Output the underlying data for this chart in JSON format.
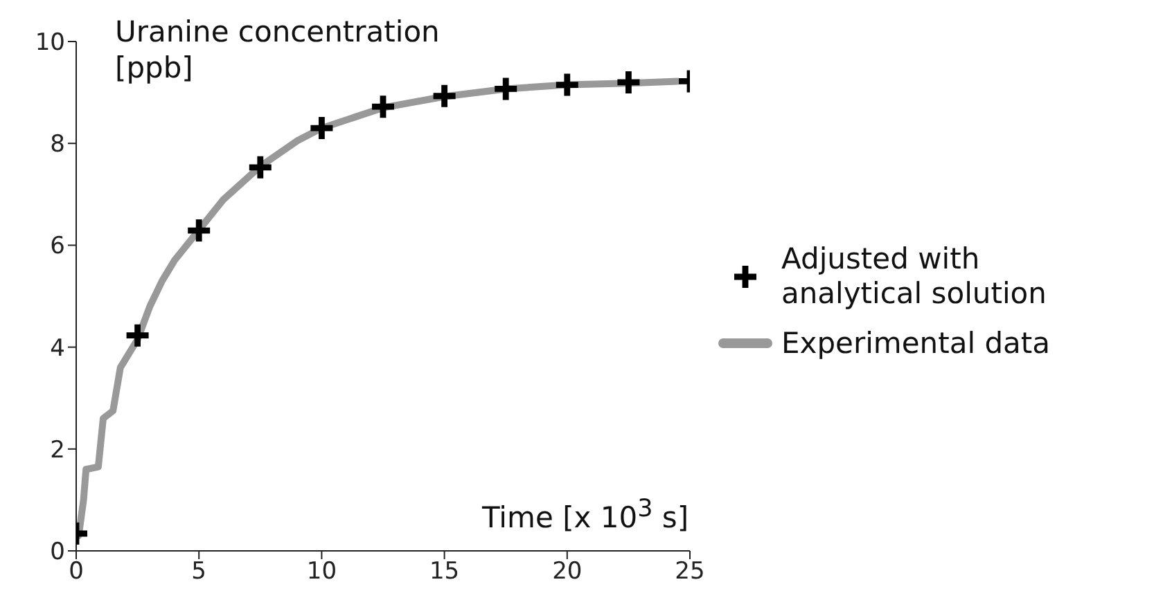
{
  "chart_data": {
    "type": "line",
    "xlabel": "Time [x 10$^{3}$ s]",
    "ylabel": "Uranine concentration [ppb]",
    "xlim": [
      0,
      25
    ],
    "xticks": [
      0,
      5,
      10,
      15,
      20,
      25
    ],
    "ylim": [
      0,
      10
    ],
    "yticks": [
      0,
      2,
      4,
      6,
      8,
      10
    ],
    "grid": false,
    "legend": "right",
    "series": [
      {
        "name": "Adjusted with analytical solution",
        "type": "scatter",
        "marker": "cross",
        "color": "#000000",
        "x": [
          0,
          2.5,
          5,
          7.5,
          10,
          12.5,
          15,
          17.5,
          20,
          22.5,
          25
        ],
        "values": [
          0.34,
          4.23,
          6.29,
          7.53,
          8.3,
          8.72,
          8.93,
          9.07,
          9.15,
          9.2,
          9.22
        ]
      },
      {
        "name": "Experimental data",
        "color": "#999999",
        "x": [
          0.1,
          0.3,
          0.4,
          0.9,
          1.1,
          1.5,
          1.8,
          2.5,
          3,
          3.5,
          4,
          5,
          6,
          7.5,
          9,
          10,
          12.5,
          15,
          17.5,
          20,
          22.5,
          24.5
        ],
        "values": [
          0.3,
          1.0,
          1.6,
          1.65,
          2.6,
          2.75,
          3.6,
          4.15,
          4.8,
          5.3,
          5.7,
          6.3,
          6.9,
          7.55,
          8.05,
          8.3,
          8.7,
          8.92,
          9.07,
          9.15,
          9.18,
          9.22
        ]
      }
    ]
  }
}
